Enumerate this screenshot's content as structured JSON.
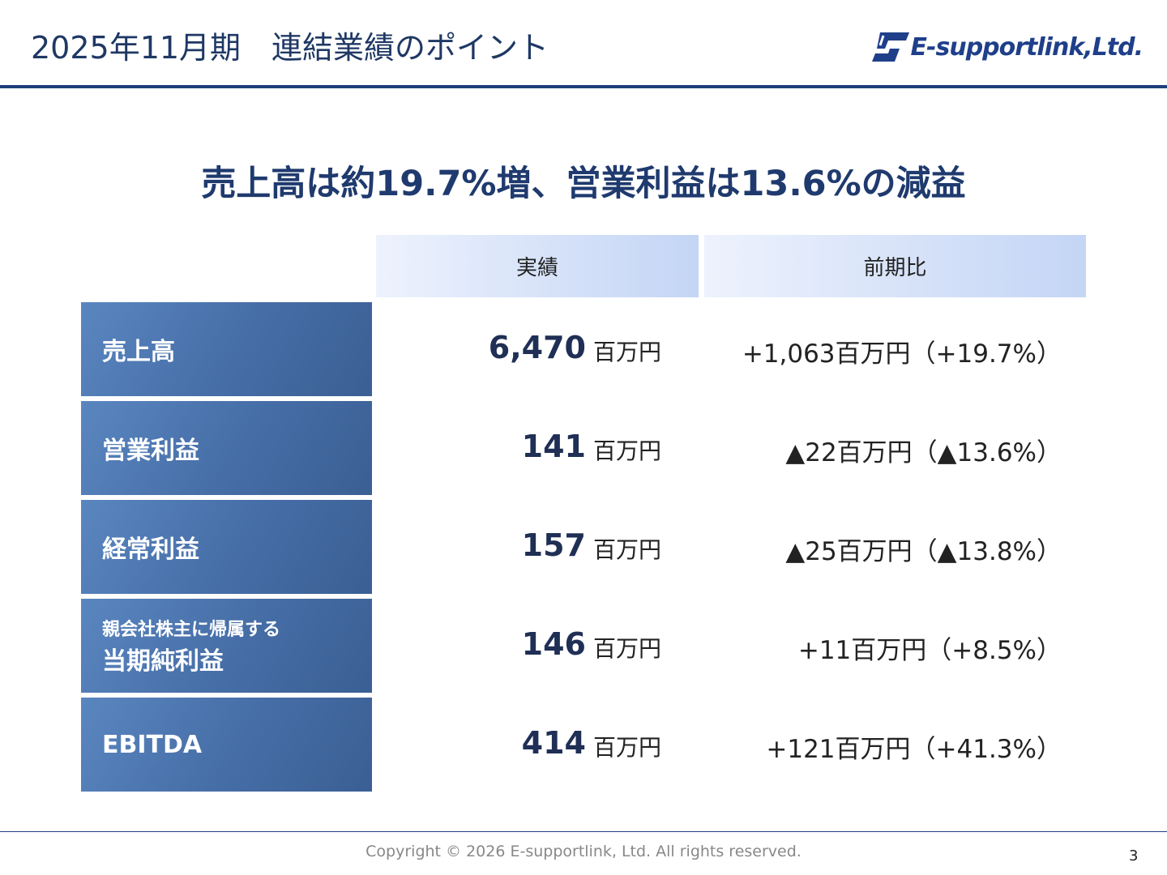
{
  "header": {
    "title": "2025年11月期　連結業績のポイント",
    "logo": "E-supportlink,Ltd."
  },
  "headline": "売上高は約19.7%増、営業利益は13.6%の減益",
  "table": {
    "columns": [
      "実績",
      "前期比"
    ],
    "rows": [
      {
        "label": [
          "売上高"
        ],
        "value": "6,470",
        "unit": "百万円",
        "change": "+1,063百万円（+19.7%）"
      },
      {
        "label": [
          "営業利益"
        ],
        "value": "141",
        "unit": "百万円",
        "change": "▲22百万円（▲13.6%）"
      },
      {
        "label": [
          "経常利益"
        ],
        "value": "157",
        "unit": "百万円",
        "change": "▲25百万円（▲13.8%）"
      },
      {
        "label": [
          "親会社株主に帰属する",
          "当期純利益"
        ],
        "value": "146",
        "unit": "百万円",
        "change": "+11百万円（+8.5%）"
      },
      {
        "label": [
          "EBITDA"
        ],
        "value": "414",
        "unit": "百万円",
        "change": "+121百万円（+41.3%）"
      }
    ]
  },
  "footer": {
    "copyright": "Copyright © 2026 E-supportlink, Ltd. All rights reserved.",
    "page_number": "3"
  }
}
